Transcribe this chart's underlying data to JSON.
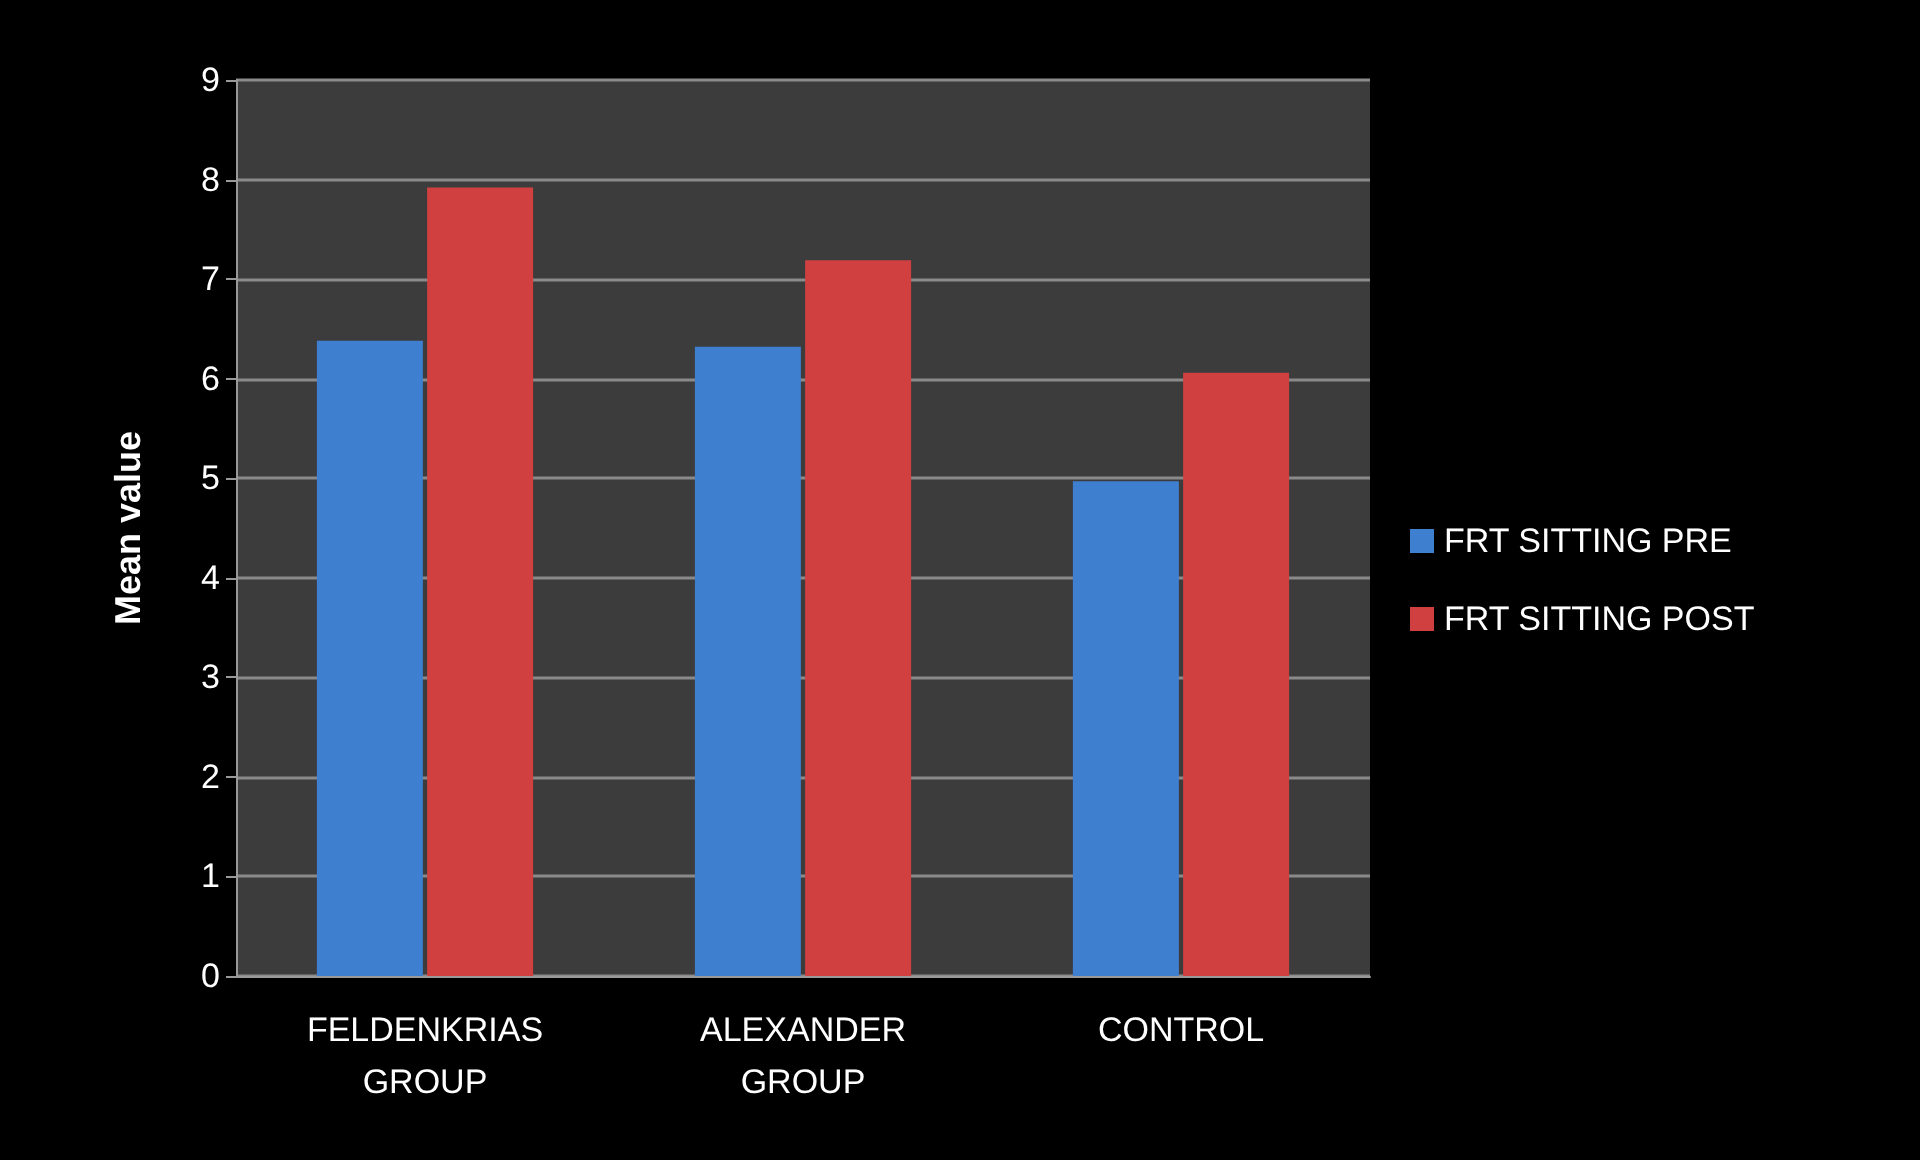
{
  "chart_data": {
    "type": "bar",
    "ylabel": "Mean value",
    "categories": [
      "FELDENKRIAS\nGROUP",
      "ALEXANDER\nGROUP",
      "CONTROL"
    ],
    "series": [
      {
        "name": "FRT SITTING PRE",
        "color": "#3f7fd0",
        "values": [
          6.38,
          6.32,
          4.97
        ]
      },
      {
        "name": "FRT SITTING POST",
        "color": "#d04040",
        "values": [
          7.92,
          7.19,
          6.06
        ]
      }
    ],
    "ylim": [
      0,
      9
    ],
    "yticks": [
      0,
      1,
      2,
      3,
      4,
      5,
      6,
      7,
      8,
      9
    ],
    "grid": "y",
    "legend": "right"
  }
}
